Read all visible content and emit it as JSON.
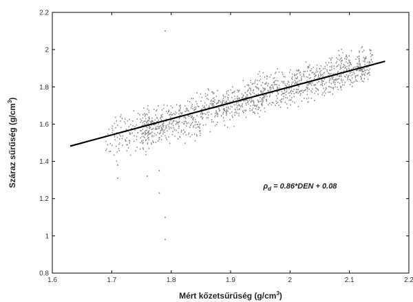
{
  "chart_data": {
    "type": "scatter",
    "title": "",
    "xlabel": "Mért kőzetsűrűség (g/cm",
    "xlabel_sup": "3",
    "xlabel_end": ")",
    "ylabel": "Száraz sűrűség (g/cm",
    "ylabel_sup": "3",
    "ylabel_end": ")",
    "xlim": [
      1.6,
      2.2
    ],
    "ylim": [
      0.8,
      2.2
    ],
    "xticks": [
      1.6,
      1.7,
      1.8,
      1.9,
      2,
      2.1,
      2.2
    ],
    "xtick_labels": [
      "1.6",
      "1.7",
      "1.8",
      "1.9",
      "2",
      "2.1",
      "2.2"
    ],
    "yticks": [
      0.8,
      1,
      1.2,
      1.4,
      1.6,
      1.8,
      2,
      2.2
    ],
    "ytick_labels": [
      "0.8",
      "1",
      "1.2",
      "1.4",
      "1.6",
      "1.8",
      "2",
      "2.2"
    ],
    "grid": false,
    "legend": "none",
    "fit_line": {
      "slope": 0.86,
      "intercept": 0.08,
      "x_range": [
        1.63,
        2.16
      ]
    },
    "annotation": {
      "symbol": "ρ",
      "subscript": "d",
      "text": " = 0.86*DEN + 0.08"
    },
    "point_cloud": {
      "x_range": [
        1.69,
        2.14
      ],
      "relation": "y ≈ 0.86*x + 0.08",
      "approx_spread": 0.05
    },
    "outliers": [
      {
        "x": 1.79,
        "y": 2.1
      },
      {
        "x": 1.79,
        "y": 0.98
      },
      {
        "x": 1.79,
        "y": 1.1
      },
      {
        "x": 1.78,
        "y": 1.23
      },
      {
        "x": 1.71,
        "y": 1.38
      },
      {
        "x": 1.71,
        "y": 1.31
      },
      {
        "x": 1.78,
        "y": 1.35
      },
      {
        "x": 1.76,
        "y": 1.32
      }
    ],
    "colors": {
      "points": "#8a8a8a",
      "fit_line": "#000000",
      "axes": "#000000"
    }
  }
}
